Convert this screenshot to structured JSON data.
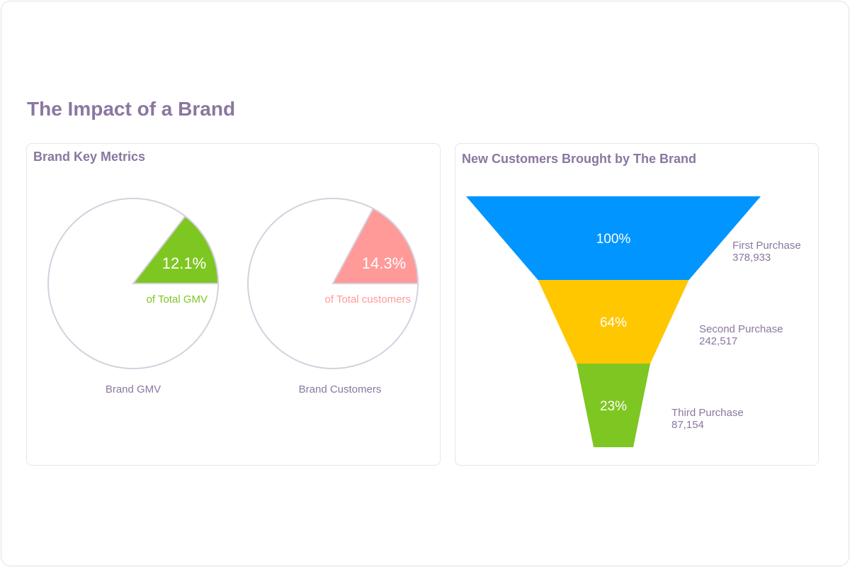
{
  "page_title": "The Impact of a Brand",
  "chart_data": [
    {
      "type": "pie",
      "title": "Brand Key Metrics",
      "pies": [
        {
          "name": "Brand GMV",
          "value_percent": 12.1,
          "label": "12.1%",
          "sublabel": "of Total GMV",
          "color": "#7ec622"
        },
        {
          "name": "Brand Customers",
          "value_percent": 14.3,
          "label": "14.3%",
          "sublabel": "of Total customers",
          "color": "#ff9a98"
        }
      ]
    },
    {
      "type": "funnel",
      "title": "New Customers Brought by The Brand",
      "stages": [
        {
          "name": "First Purchase",
          "value": "378,933",
          "percent_label": "100%",
          "color": "#0095ff"
        },
        {
          "name": "Second Purchase",
          "value": "242,517",
          "percent_label": "64%",
          "color": "#ffc700"
        },
        {
          "name": "Third Purchase",
          "value": "87,154",
          "percent_label": "23%",
          "color": "#7ec622"
        }
      ]
    }
  ]
}
